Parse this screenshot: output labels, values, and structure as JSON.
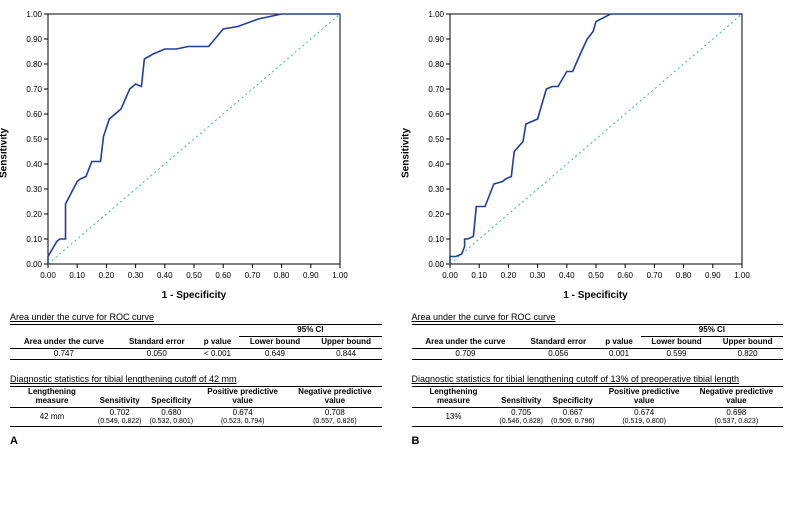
{
  "axis": {
    "xlabel": "1 - Specificity",
    "ylabel": "Sensitivity",
    "xlim": [
      0,
      1
    ],
    "ylim": [
      0,
      1
    ],
    "ticks": [
      "0.00",
      "0.10",
      "0.20",
      "0.30",
      "0.40",
      "0.50",
      "0.60",
      "0.70",
      "0.80",
      "0.90",
      "1.00"
    ],
    "plot_border_color": "#000000",
    "diag_color": "#2ec27e",
    "line_color": "#1f3e9e",
    "line_width": 1.6,
    "tick_fontsize": 8,
    "label_fontsize": 10
  },
  "panelA": {
    "letter": "A",
    "roc": [
      [
        0.0,
        0.0
      ],
      [
        0.0,
        0.03
      ],
      [
        0.02,
        0.07
      ],
      [
        0.03,
        0.09
      ],
      [
        0.04,
        0.1
      ],
      [
        0.06,
        0.1
      ],
      [
        0.06,
        0.24
      ],
      [
        0.1,
        0.33
      ],
      [
        0.11,
        0.34
      ],
      [
        0.13,
        0.35
      ],
      [
        0.15,
        0.41
      ],
      [
        0.18,
        0.41
      ],
      [
        0.19,
        0.51
      ],
      [
        0.21,
        0.58
      ],
      [
        0.25,
        0.62
      ],
      [
        0.28,
        0.7
      ],
      [
        0.3,
        0.72
      ],
      [
        0.32,
        0.71
      ],
      [
        0.33,
        0.82
      ],
      [
        0.36,
        0.84
      ],
      [
        0.4,
        0.86
      ],
      [
        0.44,
        0.86
      ],
      [
        0.48,
        0.87
      ],
      [
        0.55,
        0.87
      ],
      [
        0.6,
        0.94
      ],
      [
        0.65,
        0.95
      ],
      [
        0.72,
        0.98
      ],
      [
        0.8,
        1.0
      ],
      [
        1.0,
        1.0
      ]
    ],
    "auc_title": "Area under the curve for ROC curve",
    "auc_headers": {
      "area": "Area under the curve",
      "se": "Standard error",
      "p": "p value",
      "ci": "95% CI",
      "lo": "Lower bound",
      "hi": "Upper bound"
    },
    "auc_row": {
      "area": "0.747",
      "se": "0.050",
      "p": "< 0.001",
      "lo": "0.649",
      "hi": "0.844"
    },
    "diag_title": "Diagnostic statistics for tibial lengthening cutoff of 42 mm",
    "diag_headers": {
      "measure": "Lengthening measure",
      "sens": "Sensitivity",
      "spec": "Specificity",
      "ppv": "Positive predictive value",
      "npv": "Negative predictive value"
    },
    "diag_row": {
      "measure": "42 mm",
      "sens": "0.702",
      "sens_ci": "(0.549, 0.822)",
      "spec": "0.680",
      "spec_ci": "(0.532, 0.801)",
      "ppv": "0.674",
      "ppv_ci": "(0.523, 0.794)",
      "npv": "0.708",
      "npv_ci": "(0.557, 0.826)"
    }
  },
  "panelB": {
    "letter": "B",
    "roc": [
      [
        0.0,
        0.0
      ],
      [
        0.0,
        0.03
      ],
      [
        0.02,
        0.03
      ],
      [
        0.04,
        0.04
      ],
      [
        0.05,
        0.07
      ],
      [
        0.05,
        0.1
      ],
      [
        0.06,
        0.1
      ],
      [
        0.08,
        0.11
      ],
      [
        0.09,
        0.23
      ],
      [
        0.12,
        0.23
      ],
      [
        0.15,
        0.32
      ],
      [
        0.18,
        0.33
      ],
      [
        0.19,
        0.34
      ],
      [
        0.21,
        0.35
      ],
      [
        0.22,
        0.45
      ],
      [
        0.25,
        0.49
      ],
      [
        0.26,
        0.56
      ],
      [
        0.3,
        0.58
      ],
      [
        0.33,
        0.7
      ],
      [
        0.35,
        0.71
      ],
      [
        0.37,
        0.71
      ],
      [
        0.4,
        0.77
      ],
      [
        0.42,
        0.77
      ],
      [
        0.45,
        0.85
      ],
      [
        0.47,
        0.9
      ],
      [
        0.49,
        0.93
      ],
      [
        0.5,
        0.97
      ],
      [
        0.55,
        1.0
      ],
      [
        1.0,
        1.0
      ]
    ],
    "auc_title": "Area under the curve for ROC curve",
    "auc_headers": {
      "area": "Area under the curve",
      "se": "Standard error",
      "p": "p value",
      "ci": "95% CI",
      "lo": "Lower bound",
      "hi": "Upper bound"
    },
    "auc_row": {
      "area": "0.709",
      "se": "0.056",
      "p": "0.001",
      "lo": "0.599",
      "hi": "0.820"
    },
    "diag_title": "Diagnostic statistics for tibial lengthening cutoff of 13% of preoperative tibial length",
    "diag_headers": {
      "measure": "Lengthening measure",
      "sens": "Sensitivity",
      "spec": "Specificity",
      "ppv": "Positive predictive value",
      "npv": "Negative predictive value"
    },
    "diag_row": {
      "measure": "13%",
      "sens": "0.705",
      "sens_ci": "(0.546, 0.828)",
      "spec": "0.667",
      "spec_ci": "(0.509, 0.796)",
      "ppv": "0.674",
      "ppv_ci": "(0.519, 0.800)",
      "npv": "0.698",
      "npv_ci": "(0.537, 0.823)"
    }
  }
}
